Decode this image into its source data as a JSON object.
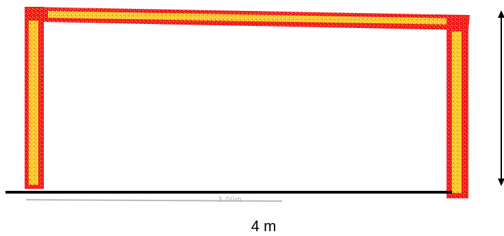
{
  "diagram": {
    "width_label": "4 m",
    "faint_dimension_label": "3.00m",
    "frame_colors": {
      "outer": "#f01818",
      "inner": "#f8d020",
      "speckle": "#ffffff"
    },
    "ground_color": "#000000",
    "arrow_color": "#000000"
  }
}
